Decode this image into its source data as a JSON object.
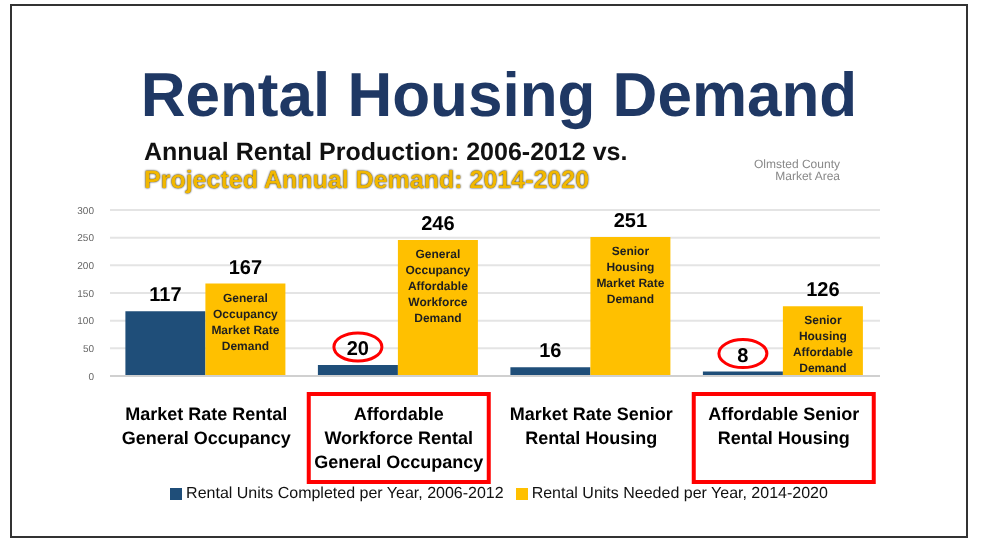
{
  "chart_data": {
    "type": "bar",
    "title": "Rental Housing Demand",
    "subtitle": "Annual Rental Production: 2006-2012 vs.",
    "annotations": [
      "Projected Annual Demand: 2014-2020",
      "Olmsted County Market Area",
      "General Occupancy Market Rate Demand",
      "General Occupancy Affordable Workforce Demand",
      "Senior Housing Market Rate Demand",
      "Senior Housing Affordable Demand"
    ],
    "categories": [
      "Market Rate Rental General Occupancy",
      "Affordable Workforce Rental General Occupancy",
      "Market Rate Senior Rental Housing",
      "Affordable Senior Rental Housing"
    ],
    "series": [
      {
        "name": "Rental Units Completed per Year, 2006-2012",
        "color": "#1f4e79",
        "values": [
          117,
          20,
          16,
          8
        ]
      },
      {
        "name": "Rental Units Needed per Year, 2014-2020",
        "color": "#ffc000",
        "values": [
          167,
          246,
          251,
          126
        ]
      }
    ],
    "ylim": [
      0,
      300
    ],
    "yticks": [
      0,
      50,
      100,
      150,
      200,
      250,
      300
    ],
    "grid": "y",
    "data_labels": true,
    "legend": "bottom"
  }
}
